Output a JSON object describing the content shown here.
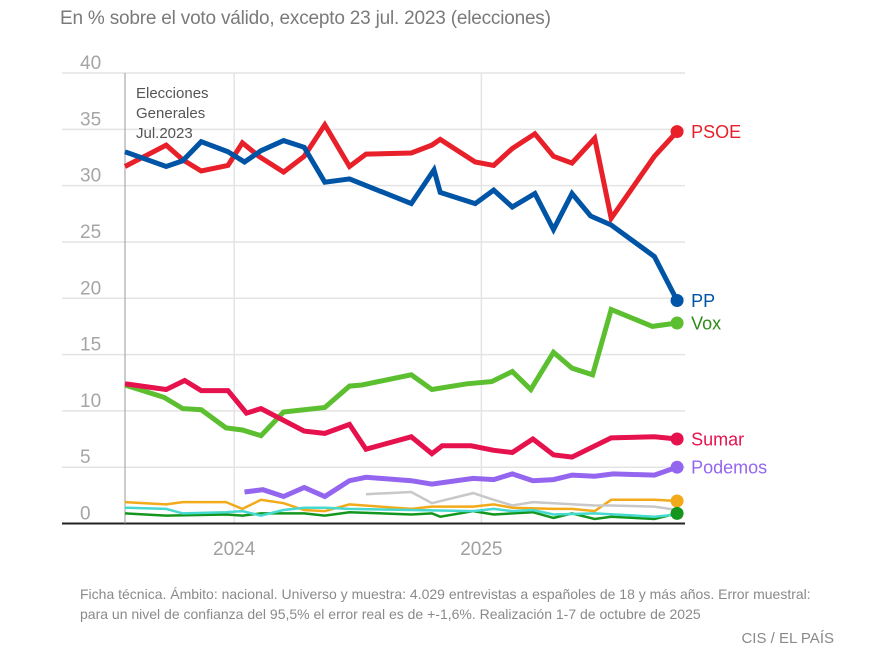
{
  "subtitle": "En % sobre el voto válido, excepto 23 jul. 2023 (elecciones)",
  "footnote": "Ficha técnica. Ámbito: nacional. Universo y muestra: 4.029 entrevistas a españoles de 18 y más años. Error muestral: para un nivel de confianza del 95,5% el error real es de +-1,6%. Realización 1-7 de octubre de 2025",
  "source": "CIS / EL PAÍS",
  "chart_data": {
    "type": "line",
    "title": "En % sobre el voto válido, excepto 23 jul. 2023 (elecciones)",
    "xlabel": "",
    "ylabel": "",
    "x_unit": "months since Jul. 2023",
    "xlim": [
      0,
      27.2
    ],
    "ylim": [
      0,
      40
    ],
    "yticks": [
      0,
      5,
      10,
      15,
      20,
      25,
      30,
      35,
      40
    ],
    "xticks": [
      {
        "value": 5.3,
        "label": "2024"
      },
      {
        "value": 17.3,
        "label": "2025"
      }
    ],
    "grid": true,
    "annotation": {
      "x": 0,
      "lines": [
        "Elecciones",
        "Generales",
        "Jul.2023"
      ]
    },
    "series": [
      {
        "name": "PSOE",
        "color": "#e8202a",
        "labeled": true,
        "x": [
          0,
          2,
          2.8,
          3.7,
          5,
          5.7,
          6.5,
          7.7,
          8.7,
          9.7,
          10.9,
          11.7,
          13.9,
          14.9,
          15.3,
          17,
          17.9,
          18.8,
          19.9,
          20.8,
          21.7,
          22.8,
          23.6,
          25.7,
          26.8
        ],
        "y": [
          31.7,
          33.6,
          32.3,
          31.3,
          31.8,
          33.8,
          32.6,
          31.2,
          32.6,
          35.4,
          31.7,
          32.8,
          32.9,
          33.6,
          34.1,
          32.1,
          31.8,
          33.3,
          34.6,
          32.6,
          32.0,
          34.2,
          27.1,
          32.6,
          34.8
        ]
      },
      {
        "name": "PP",
        "color": "#0054a5",
        "labeled": true,
        "x": [
          0,
          2,
          2.8,
          3.7,
          5,
          5.8,
          6.6,
          7.7,
          8.7,
          9.7,
          10.9,
          13.9,
          15,
          15.3,
          17,
          17.9,
          18.8,
          19.9,
          20.8,
          21.7,
          22.6,
          23.6,
          25.7,
          26.8
        ],
        "y": [
          33.0,
          31.7,
          32.2,
          33.9,
          33.0,
          32.1,
          33.1,
          34.0,
          33.4,
          30.3,
          30.6,
          28.4,
          31.4,
          29.4,
          28.4,
          29.6,
          28.1,
          29.3,
          26.1,
          29.3,
          27.3,
          26.5,
          23.7,
          19.8
        ]
      },
      {
        "name": "Vox",
        "color": "#5bbf30",
        "labeled": true,
        "x": [
          0,
          1.9,
          2.8,
          3.7,
          4.9,
          5.7,
          6.6,
          7.7,
          9.7,
          10.9,
          11.5,
          13.9,
          14.9,
          16.6,
          17.8,
          18.8,
          19.7,
          20.8,
          21.7,
          22.7,
          23.6,
          25.6,
          26.8
        ],
        "y": [
          12.3,
          11.2,
          10.2,
          10.1,
          8.5,
          8.3,
          7.8,
          9.9,
          10.3,
          12.2,
          12.3,
          13.2,
          11.9,
          12.4,
          12.6,
          13.5,
          11.9,
          15.2,
          13.8,
          13.2,
          19.0,
          17.5,
          17.8
        ]
      },
      {
        "name": "Sumar",
        "color": "#e5124e",
        "labeled": true,
        "x": [
          0,
          2,
          2.9,
          3.7,
          5,
          5.9,
          6.6,
          8.7,
          9.7,
          10.9,
          11.7,
          13.9,
          14.9,
          15.4,
          16.8,
          17.9,
          18.8,
          19.8,
          20.8,
          21.7,
          23.6,
          25.7,
          26.8
        ],
        "y": [
          12.4,
          11.9,
          12.7,
          11.8,
          11.8,
          9.8,
          10.2,
          8.2,
          8.0,
          8.8,
          6.6,
          7.7,
          6.2,
          6.9,
          6.9,
          6.5,
          6.3,
          7.5,
          6.1,
          5.9,
          7.6,
          7.7,
          7.5
        ]
      },
      {
        "name": "Podemos",
        "color": "#9466f0",
        "labeled": true,
        "x": [
          5.8,
          6.7,
          7.7,
          8.7,
          9.7,
          10.9,
          11.7,
          13.9,
          14.9,
          16.9,
          17.9,
          18.8,
          19.8,
          20.8,
          21.7,
          22.8,
          23.7,
          25.7,
          26.8
        ],
        "y": [
          2.8,
          3.0,
          2.4,
          3.2,
          2.4,
          3.8,
          4.1,
          3.8,
          3.5,
          4.0,
          3.9,
          4.4,
          3.8,
          3.9,
          4.3,
          4.2,
          4.4,
          4.3,
          5.0
        ]
      },
      {
        "name": "Otro 1",
        "color": "#f2aa1b",
        "labeled": false,
        "x": [
          0,
          2,
          2.8,
          4.9,
          5.7,
          6.6,
          7.7,
          8.7,
          9.7,
          10.9,
          13.9,
          14.9,
          16.9,
          17.9,
          18.8,
          20.8,
          21.7,
          22.8,
          23.6,
          25.7,
          26.8
        ],
        "y": [
          1.9,
          1.7,
          1.9,
          1.9,
          1.3,
          2.1,
          1.8,
          1.2,
          1.1,
          1.7,
          1.3,
          1.5,
          1.5,
          1.7,
          1.4,
          1.3,
          1.3,
          1.1,
          2.1,
          2.1,
          2.0
        ]
      },
      {
        "name": "Otro 2",
        "color": "#14961e",
        "labeled": false,
        "x": [
          0,
          2,
          4.9,
          5.7,
          6.6,
          8.7,
          9.7,
          10.9,
          13.9,
          14.9,
          15.3,
          16.9,
          17.9,
          18.8,
          19.8,
          20.8,
          21.7,
          22.8,
          23.6,
          25.7,
          26.8
        ],
        "y": [
          0.9,
          0.7,
          0.8,
          0.7,
          0.9,
          0.9,
          0.7,
          1.0,
          0.8,
          0.9,
          0.6,
          1.1,
          0.8,
          0.9,
          1.0,
          0.5,
          0.9,
          0.4,
          0.6,
          0.4,
          0.9
        ]
      },
      {
        "name": "Otro 3",
        "color": "#45d9cf",
        "labeled": false,
        "x": [
          0,
          2,
          2.8,
          4.9,
          5.7,
          6.6,
          7.7,
          8.7,
          9.7,
          10.9,
          13.9,
          16.9,
          17.9,
          18.8,
          19.8,
          20.8,
          22.8,
          25.7,
          26.8
        ],
        "y": [
          1.4,
          1.3,
          0.9,
          1.0,
          1.1,
          0.7,
          1.2,
          1.4,
          1.4,
          1.3,
          1.2,
          1.1,
          1.3,
          1.1,
          1.2,
          0.8,
          0.9,
          0.6,
          0.8
        ]
      },
      {
        "name": "Otro 4",
        "color": "#c8c8c8",
        "labeled": false,
        "x": [
          11.7,
          13.9,
          14.9,
          16.9,
          17.9,
          18.8,
          19.8,
          20.8,
          22.8,
          23.6,
          25.7,
          26.8
        ],
        "y": [
          2.6,
          2.8,
          1.8,
          2.7,
          2.1,
          1.6,
          1.9,
          1.8,
          1.6,
          1.6,
          1.5,
          1.2
        ]
      }
    ]
  }
}
